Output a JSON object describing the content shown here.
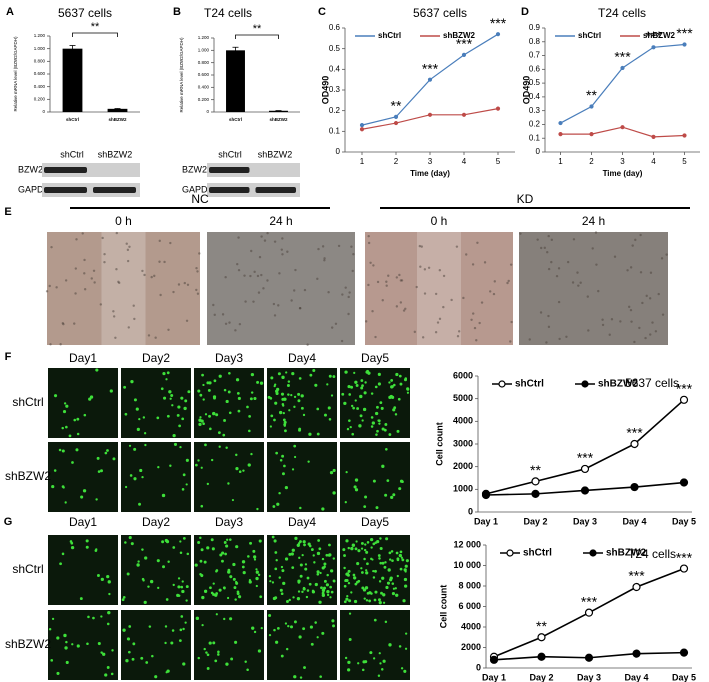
{
  "chart_data": [
    {
      "type": "bar",
      "title": "5637 cells",
      "ylabel": "Relative mRNA level (BZW2/GAPDH)",
      "categories": [
        "shCtrl",
        "shBZW2"
      ],
      "values": [
        1.0,
        0.05
      ],
      "errors": [
        0.05,
        0.005
      ],
      "color": "#000000",
      "ylim": [
        0,
        1.2
      ],
      "yticks": [
        0,
        {
          "value": 0.2,
          "label": "0.200"
        },
        {
          "value": 0.4,
          "label": "0.400"
        },
        {
          "value": 0.6,
          "label": "0.600"
        },
        {
          "value": 0.8,
          "label": "0.800"
        },
        {
          "value": 1.0,
          "label": "1.000"
        },
        {
          "value": 1.2,
          "label": "1.200"
        }
      ],
      "annotation": "**"
    },
    {
      "type": "bar",
      "title": "T24 cells",
      "ylabel": "Relative mRNA level (BZW2/GAPDH)",
      "categories": [
        "shCtrl",
        "shBZW2"
      ],
      "values": [
        1.0,
        0.02
      ],
      "errors": [
        0.05,
        0.003
      ],
      "color": "#000000",
      "ylim": [
        0,
        1.2
      ],
      "yticks": [
        0,
        {
          "value": 0.2,
          "label": "0.200"
        },
        {
          "value": 0.4,
          "label": "0.400"
        },
        {
          "value": 0.6,
          "label": "0.600"
        },
        {
          "value": 0.8,
          "label": "0.800"
        },
        {
          "value": 1.0,
          "label": "1.000"
        },
        {
          "value": 1.2,
          "label": "1.200"
        }
      ],
      "annotation": "**"
    },
    {
      "type": "line",
      "title": "5637 cells",
      "xlabel": "Time (day)",
      "ylabel": "OD490",
      "x": [
        1,
        2,
        3,
        4,
        5
      ],
      "xlim": [
        0.5,
        5.5
      ],
      "xticks": [
        1,
        2,
        3,
        4,
        5
      ],
      "ylim": [
        0,
        0.6
      ],
      "yticks": [
        0,
        0.1,
        0.2,
        0.3,
        0.4,
        0.5,
        0.6
      ],
      "series": [
        {
          "name": "shCtrl",
          "color": "#4a7ebb",
          "values": [
            0.13,
            0.17,
            0.35,
            0.47,
            0.57
          ]
        },
        {
          "name": "shBZW2",
          "color": "#be4b48",
          "values": [
            0.11,
            0.14,
            0.18,
            0.18,
            0.21
          ]
        }
      ],
      "annotations": [
        {
          "x": 2,
          "text": "**"
        },
        {
          "x": 3,
          "text": "***"
        },
        {
          "x": 4,
          "text": "***"
        },
        {
          "x": 5,
          "text": "***"
        }
      ]
    },
    {
      "type": "line",
      "title": "T24 cells",
      "xlabel": "Time (day)",
      "ylabel": "OD490",
      "x": [
        1,
        2,
        3,
        4,
        5
      ],
      "xlim": [
        0.5,
        5.5
      ],
      "xticks": [
        1,
        2,
        3,
        4,
        5
      ],
      "ylim": [
        0,
        0.9
      ],
      "yticks": [
        0,
        0.1,
        0.2,
        0.3,
        0.4,
        0.5,
        0.6,
        0.7,
        0.8,
        0.9
      ],
      "series": [
        {
          "name": "shCtrl",
          "color": "#4a7ebb",
          "values": [
            0.21,
            0.33,
            0.61,
            0.76,
            0.78
          ]
        },
        {
          "name": "shBZW2",
          "color": "#be4b48",
          "values": [
            0.13,
            0.13,
            0.18,
            0.11,
            0.12
          ]
        }
      ],
      "annotations": [
        {
          "x": 2,
          "text": "**"
        },
        {
          "x": 3,
          "text": "***"
        },
        {
          "x": 4,
          "text": "***"
        },
        {
          "x": 5,
          "text": "***"
        }
      ]
    },
    {
      "type": "line",
      "inset_label": "5637 cells",
      "ylabel": "Cell count",
      "categories": [
        "Day 1",
        "Day 2",
        "Day 3",
        "Day 4",
        "Day 5"
      ],
      "ylim": [
        0,
        6000
      ],
      "yticks": [
        0,
        1000,
        2000,
        3000,
        4000,
        5000,
        6000
      ],
      "series": [
        {
          "name": "shCtrl",
          "color": "#000000",
          "marker": "open",
          "values": [
            800,
            1350,
            1900,
            3000,
            4950
          ]
        },
        {
          "name": "shBZW2",
          "color": "#000000",
          "marker": "filled",
          "values": [
            750,
            800,
            950,
            1100,
            1300
          ]
        }
      ],
      "annotations": [
        {
          "x": "Day 2",
          "text": "**"
        },
        {
          "x": "Day 3",
          "text": "***"
        },
        {
          "x": "Day 4",
          "text": "***"
        },
        {
          "x": "Day 5",
          "text": "***"
        }
      ]
    },
    {
      "type": "line",
      "inset_label": "T24 cells",
      "ylabel": "Cell count",
      "categories": [
        "Day 1",
        "Day 2",
        "Day 3",
        "Day 4",
        "Day 5"
      ],
      "ylim": [
        0,
        12000
      ],
      "yticks": [
        0,
        2000,
        4000,
        {
          "value": 6000,
          "label": "6 000"
        },
        {
          "value": 8000,
          "label": "8 000"
        },
        {
          "value": 10000,
          "label": "10 000"
        },
        {
          "value": 12000,
          "label": "12 000"
        }
      ],
      "series": [
        {
          "name": "shCtrl",
          "color": "#000000",
          "marker": "open",
          "values": [
            1100,
            3000,
            5400,
            7900,
            9700
          ]
        },
        {
          "name": "shBZW2",
          "color": "#000000",
          "marker": "filled",
          "values": [
            800,
            1100,
            1000,
            1400,
            1500
          ]
        }
      ],
      "annotations": [
        {
          "x": "Day 2",
          "text": "**"
        },
        {
          "x": "Day 3",
          "text": "***"
        },
        {
          "x": "Day 4",
          "text": "***"
        },
        {
          "x": "Day 5",
          "text": "***"
        }
      ]
    }
  ],
  "panel_labels": [
    "A",
    "B",
    "C",
    "D",
    "E",
    "F",
    "G"
  ],
  "blots": [
    {
      "lanes": [
        "shCtrl",
        "shBZW2"
      ],
      "rows": [
        "BZW2",
        "GAPDH"
      ]
    },
    {
      "lanes": [
        "shCtrl",
        "shBZW2"
      ],
      "rows": [
        "BZW2",
        "GAPDH"
      ]
    }
  ],
  "wound_healing": {
    "groups": [
      "NC",
      "KD"
    ],
    "times": [
      "0 h",
      "24 h",
      "0 h",
      "24 h"
    ]
  },
  "fluorescence": [
    {
      "days": [
        "Day1",
        "Day2",
        "Day3",
        "Day4",
        "Day5"
      ],
      "rows": [
        "shCtrl",
        "shBZW2"
      ]
    },
    {
      "days": [
        "Day1",
        "Day2",
        "Day3",
        "Day4",
        "Day5"
      ],
      "rows": [
        "shCtrl",
        "shBZW2"
      ]
    }
  ]
}
